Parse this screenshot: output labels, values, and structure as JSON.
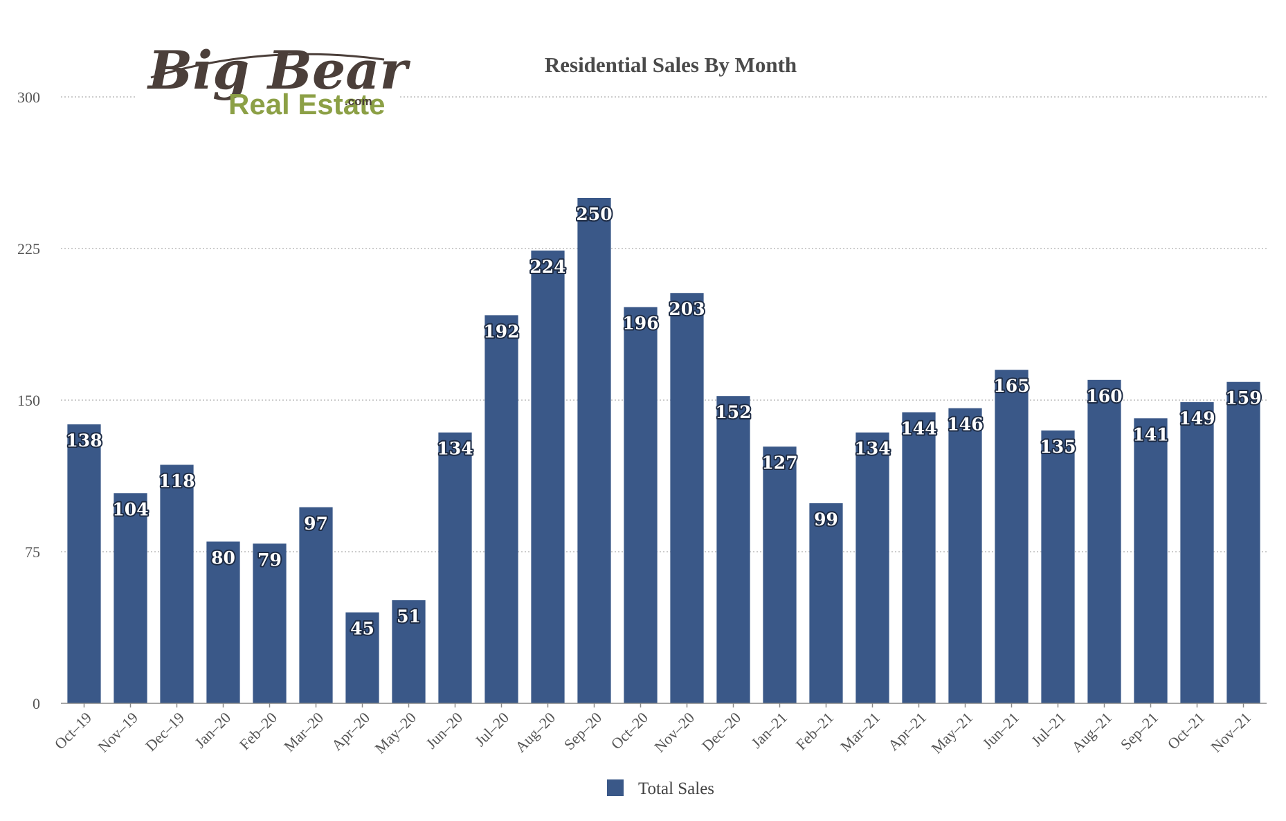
{
  "logo": {
    "line1": "Big Bear",
    "line2": "Real Estate",
    "suffix": ".com"
  },
  "colors": {
    "bar": "#3a5888",
    "grid": "#bbbbbb",
    "axis": "#888888",
    "logo_brown": "#4b3f3a",
    "logo_green": "#8ca046"
  },
  "chart_data": {
    "type": "bar",
    "title": "Residential Sales By Month",
    "xlabel": "",
    "ylabel": "",
    "ylim": [
      0,
      300
    ],
    "yticks": [
      0,
      75,
      150,
      225,
      300
    ],
    "grid": true,
    "legend_position": "bottom-center",
    "categories": [
      "Oct–19",
      "Nov–19",
      "Dec–19",
      "Jan–20",
      "Feb–20",
      "Mar–20",
      "Apr–20",
      "May–20",
      "Jun–20",
      "Jul–20",
      "Aug–20",
      "Sep–20",
      "Oct–20",
      "Nov–20",
      "Dec–20",
      "Jan–21",
      "Feb–21",
      "Mar–21",
      "Apr–21",
      "May–21",
      "Jun–21",
      "Jul–21",
      "Aug–21",
      "Sep–21",
      "Oct–21",
      "Nov–21"
    ],
    "series": [
      {
        "name": "Total Sales",
        "values": [
          138,
          104,
          118,
          80,
          79,
          97,
          45,
          51,
          134,
          192,
          224,
          250,
          196,
          203,
          152,
          127,
          99,
          134,
          144,
          146,
          165,
          135,
          160,
          141,
          149,
          159
        ]
      }
    ]
  }
}
